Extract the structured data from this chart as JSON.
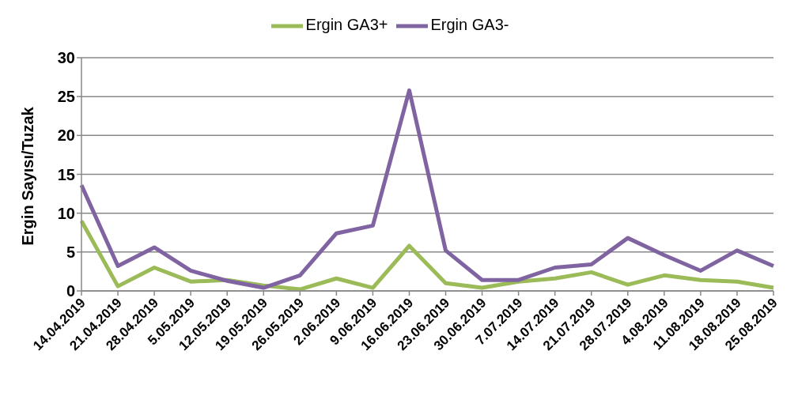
{
  "chart_data": {
    "type": "line",
    "ylabel": "Ergin Sayısı/Tuzak",
    "categories": [
      "14.04.2019",
      "21.04.2019",
      "28.04.2019",
      "5.05.2019",
      "12.05.2019",
      "19.05.2019",
      "26.05.2019",
      "2.06.2019",
      "9.06.2019",
      "16.06.2019",
      "23.06.2019",
      "30.06.2019",
      "7.07.2019",
      "14.07.2019",
      "21.07.2019",
      "28.07.2019",
      "4.08.2019",
      "11.08.2019",
      "18.08.2019",
      "25.08.2019"
    ],
    "series": [
      {
        "name": "Ergin GA3+",
        "color": "#9bbb59",
        "values": [
          9.0,
          0.6,
          3.0,
          1.2,
          1.4,
          0.7,
          0.2,
          1.6,
          0.4,
          5.8,
          1.0,
          0.4,
          1.2,
          1.6,
          2.4,
          0.8,
          2.0,
          1.4,
          1.2,
          0.4
        ]
      },
      {
        "name": "Ergin GA3-",
        "color": "#8064a2",
        "values": [
          13.6,
          3.2,
          5.6,
          2.6,
          1.3,
          0.4,
          2.0,
          7.4,
          8.4,
          25.8,
          5.2,
          1.4,
          1.4,
          3.0,
          3.4,
          6.8,
          4.6,
          2.6,
          5.2,
          3.2
        ]
      }
    ],
    "ylim": [
      0,
      30
    ],
    "yticks": [
      0,
      5,
      10,
      15,
      20,
      25,
      30
    ],
    "grid": "y",
    "legend": "top",
    "marker": "none",
    "line_style": "solid"
  }
}
